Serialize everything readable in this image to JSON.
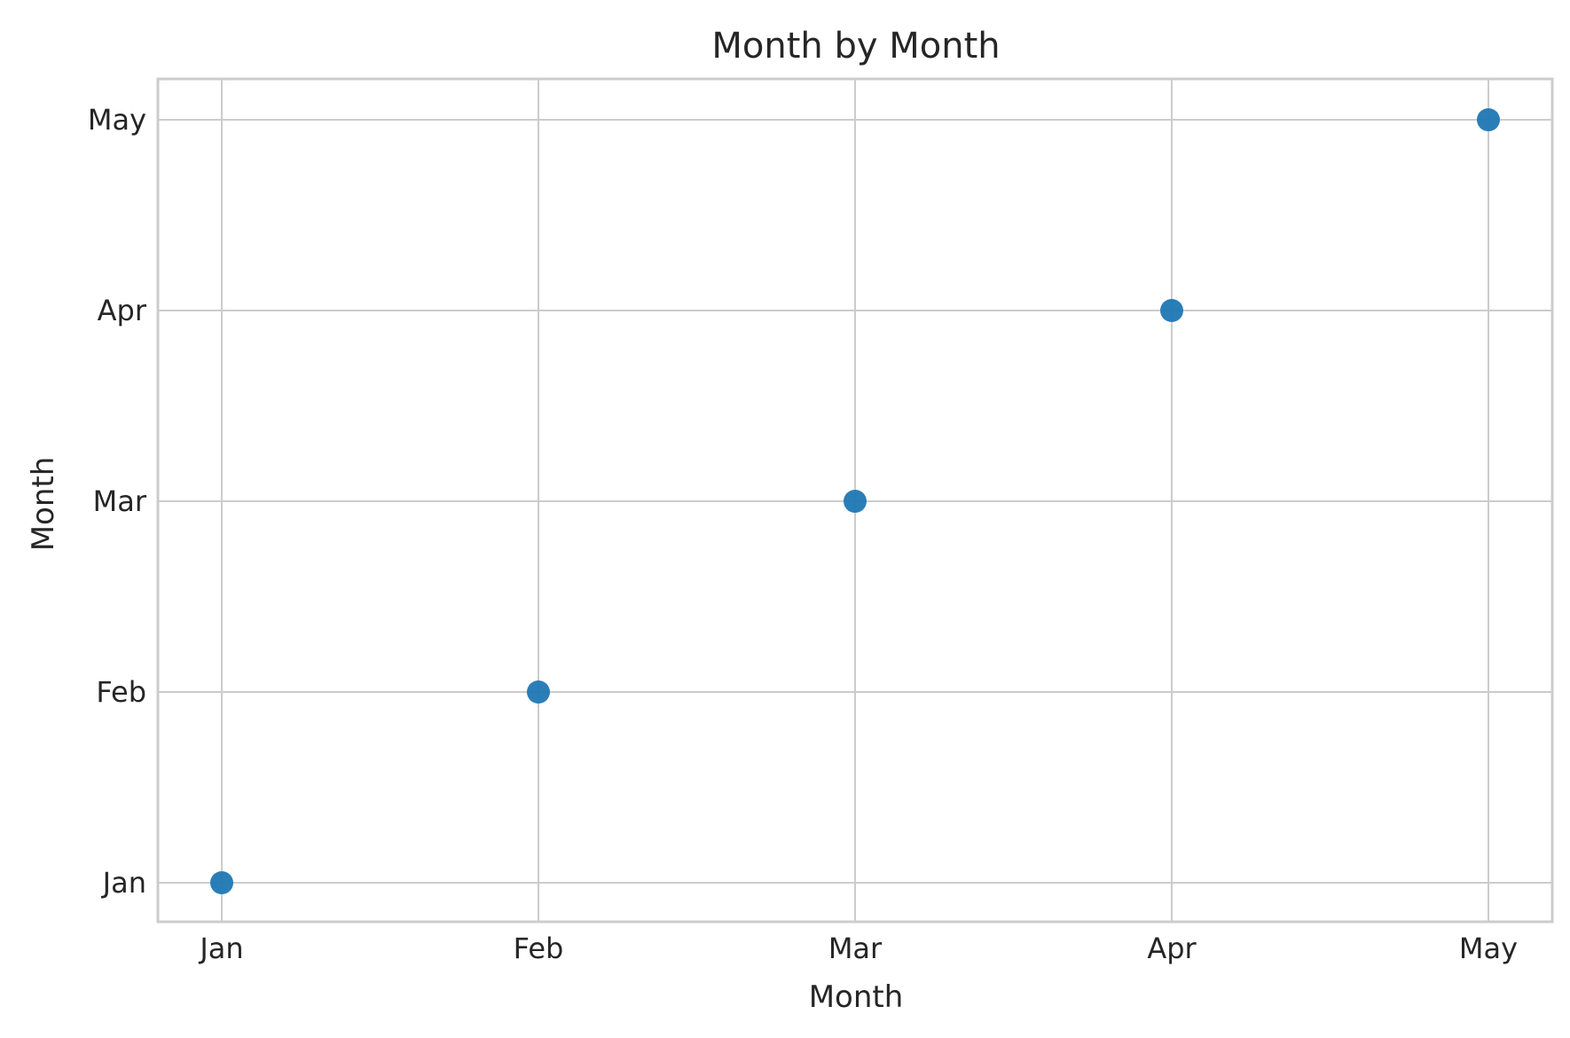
{
  "chart_data": {
    "type": "scatter",
    "title": "Month by Month",
    "xlabel": "Month",
    "ylabel": "Month",
    "x_categories": [
      "Jan",
      "Feb",
      "Mar",
      "Apr",
      "May"
    ],
    "y_categories": [
      "Jan",
      "Feb",
      "Mar",
      "Apr",
      "May"
    ],
    "points": [
      {
        "x": "Jan",
        "y": "Jan"
      },
      {
        "x": "Feb",
        "y": "Feb"
      },
      {
        "x": "Mar",
        "y": "Mar"
      },
      {
        "x": "Apr",
        "y": "Apr"
      },
      {
        "x": "May",
        "y": "May"
      }
    ],
    "grid": true,
    "legend": "none",
    "point_color": "#1f77b4"
  }
}
